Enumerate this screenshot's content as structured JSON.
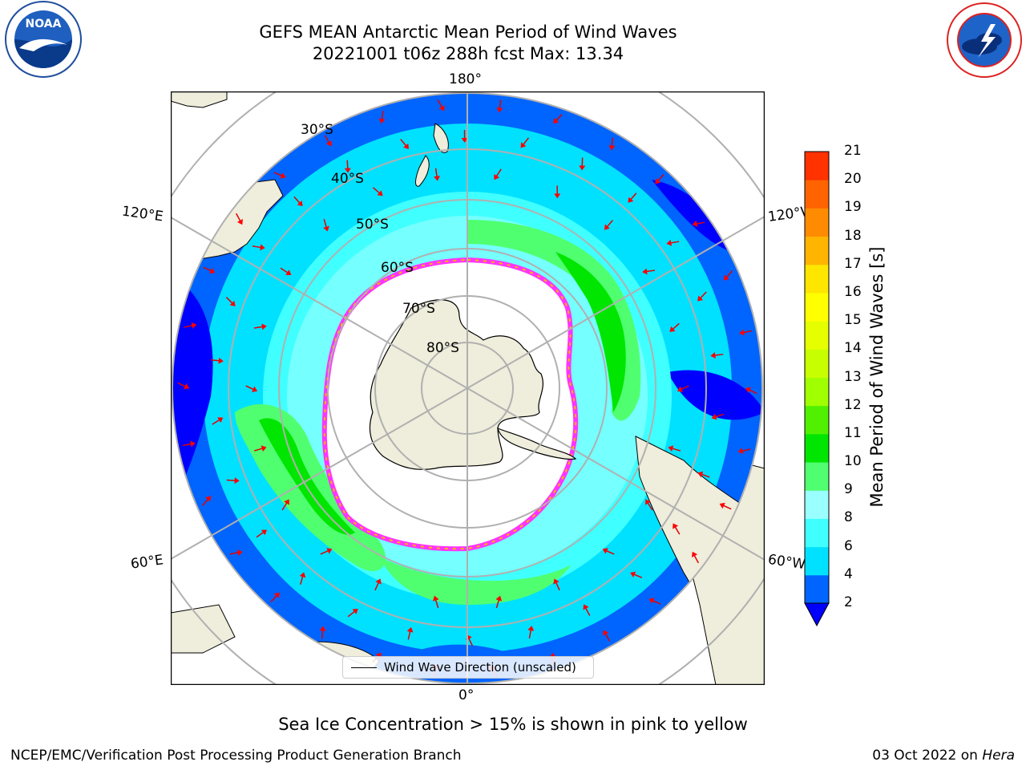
{
  "title": {
    "line1": "GEFS MEAN Antarctic Mean Period of Wind Waves",
    "line2": "20221001 t06z 288h fcst   Max: 13.34"
  },
  "map": {
    "longitude_labels": {
      "top": "180°",
      "bottom": "0°",
      "upper_left": "120°E",
      "upper_right": "120°W",
      "lower_left": "60°E",
      "lower_right": "60°W"
    },
    "latitude_labels": [
      "30°S",
      "40°S",
      "50°S",
      "60°S",
      "70°S",
      "80°S"
    ],
    "colors": {
      "land": "#efeddb",
      "ice_free_white": "#ffffff",
      "sea_ice": "#ff33ff",
      "arrows": "#ff0000",
      "gridlines": "#b0b0b0"
    }
  },
  "legend": {
    "label": "Wind Wave Direction (unscaled)"
  },
  "colorbar": {
    "label": "Mean Period of Wind Waves [s]",
    "ticks": [
      "2",
      "4",
      "6",
      "8",
      "9",
      "10",
      "11",
      "12",
      "13",
      "14",
      "15",
      "16",
      "17",
      "18",
      "19",
      "20",
      "21"
    ],
    "colors": [
      "#0064ff",
      "#00e1ff",
      "#40ffff",
      "#99ffff",
      "#50ff70",
      "#00e600",
      "#50f000",
      "#a0ff00",
      "#c8ff00",
      "#e6ff00",
      "#ffff00",
      "#ffe600",
      "#ffb400",
      "#ff8c00",
      "#ff6400",
      "#ff3200",
      "#ff0000"
    ],
    "under_color": "#0000ff"
  },
  "caption": "Sea Ice Concentration > 15% is shown in pink to yellow",
  "footer": {
    "left": "NCEP/EMC/Verification Post Processing Product Generation Branch",
    "right_date": "03 Oct 2022 on",
    "right_host": "Hera"
  },
  "logos": {
    "left": "NOAA",
    "right_text": "NATIONAL WEATHER SERVICE"
  }
}
